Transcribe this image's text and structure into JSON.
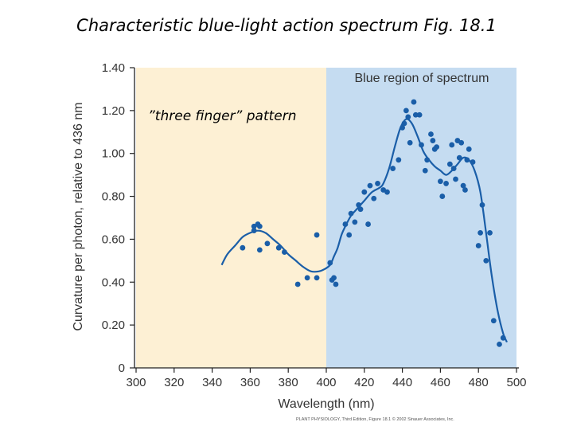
{
  "slide": {
    "title": "Characteristic blue-light action spectrum Fig. 18.1",
    "credit": "PLANT PHYSIOLOGY, Third Edition, Figure 18.1 © 2002 Sinauer Associates, Inc."
  },
  "chart_data": {
    "type": "scatter",
    "xlabel": "Wavelength (nm)",
    "ylabel": "Curvature per photon, relative to 436 nm",
    "xlim": [
      300,
      500
    ],
    "ylim": [
      0,
      1.4
    ],
    "xticks": [
      "300",
      "320",
      "340",
      "360",
      "380",
      "400",
      "420",
      "440",
      "460",
      "480",
      "500"
    ],
    "yticks": [
      "0",
      "0.20",
      "0.40",
      "0.60",
      "0.80",
      "1.00",
      "1.20",
      "1.40"
    ],
    "regions": [
      {
        "label": "",
        "x": [
          300,
          400
        ],
        "color": "#fdf0d4"
      },
      {
        "label": "Blue region of spectrum",
        "x": [
          400,
          500
        ],
        "color": "#c5dcf1"
      }
    ],
    "annotations": [
      "”three finger” pattern"
    ],
    "colors": {
      "points": "#1a5ea8",
      "curve": "#1a5ea8"
    },
    "series": [
      {
        "type": "scatter",
        "points": [
          [
            356,
            0.56
          ],
          [
            362,
            0.66
          ],
          [
            362,
            0.64
          ],
          [
            364,
            0.67
          ],
          [
            365,
            0.66
          ],
          [
            365,
            0.55
          ],
          [
            369,
            0.58
          ],
          [
            375,
            0.56
          ],
          [
            378,
            0.54
          ],
          [
            385,
            0.39
          ],
          [
            390,
            0.42
          ],
          [
            395,
            0.62
          ],
          [
            395,
            0.42
          ],
          [
            402,
            0.49
          ],
          [
            403,
            0.41
          ],
          [
            404,
            0.42
          ],
          [
            405,
            0.39
          ],
          [
            410,
            0.67
          ],
          [
            412,
            0.62
          ],
          [
            413,
            0.72
          ],
          [
            415,
            0.68
          ],
          [
            417,
            0.76
          ],
          [
            418,
            0.74
          ],
          [
            420,
            0.82
          ],
          [
            422,
            0.67
          ],
          [
            423,
            0.85
          ],
          [
            425,
            0.79
          ],
          [
            427,
            0.86
          ],
          [
            430,
            0.83
          ],
          [
            432,
            0.82
          ],
          [
            435,
            0.93
          ],
          [
            438,
            0.97
          ],
          [
            440,
            1.12
          ],
          [
            441,
            1.14
          ],
          [
            442,
            1.2
          ],
          [
            443,
            1.17
          ],
          [
            444,
            1.05
          ],
          [
            446,
            1.24
          ],
          [
            447,
            1.18
          ],
          [
            449,
            1.18
          ],
          [
            450,
            1.04
          ],
          [
            452,
            0.92
          ],
          [
            453,
            0.97
          ],
          [
            455,
            1.09
          ],
          [
            456,
            1.06
          ],
          [
            457,
            1.02
          ],
          [
            458,
            1.03
          ],
          [
            460,
            0.87
          ],
          [
            461,
            0.8
          ],
          [
            463,
            0.86
          ],
          [
            465,
            0.95
          ],
          [
            466,
            1.04
          ],
          [
            467,
            0.93
          ],
          [
            468,
            0.88
          ],
          [
            469,
            1.06
          ],
          [
            470,
            0.98
          ],
          [
            471,
            1.05
          ],
          [
            472,
            0.85
          ],
          [
            473,
            0.83
          ],
          [
            474,
            0.97
          ],
          [
            475,
            1.02
          ],
          [
            477,
            0.96
          ],
          [
            480,
            0.57
          ],
          [
            481,
            0.63
          ],
          [
            482,
            0.76
          ],
          [
            484,
            0.5
          ],
          [
            486,
            0.63
          ],
          [
            488,
            0.22
          ],
          [
            491,
            0.11
          ],
          [
            493,
            0.14
          ]
        ]
      },
      {
        "type": "line",
        "points": [
          [
            345,
            0.48
          ],
          [
            348,
            0.53
          ],
          [
            352,
            0.57
          ],
          [
            356,
            0.61
          ],
          [
            360,
            0.63
          ],
          [
            364,
            0.64
          ],
          [
            368,
            0.63
          ],
          [
            372,
            0.6
          ],
          [
            376,
            0.57
          ],
          [
            380,
            0.53
          ],
          [
            384,
            0.5
          ],
          [
            388,
            0.47
          ],
          [
            392,
            0.45
          ],
          [
            396,
            0.45
          ],
          [
            399,
            0.46
          ],
          [
            402,
            0.48
          ],
          [
            404,
            0.52
          ],
          [
            406,
            0.56
          ],
          [
            408,
            0.62
          ],
          [
            410,
            0.66
          ],
          [
            413,
            0.71
          ],
          [
            416,
            0.74
          ],
          [
            420,
            0.78
          ],
          [
            424,
            0.82
          ],
          [
            428,
            0.84
          ],
          [
            430,
            0.86
          ],
          [
            433,
            0.93
          ],
          [
            436,
            1.03
          ],
          [
            439,
            1.12
          ],
          [
            442,
            1.16
          ],
          [
            445,
            1.14
          ],
          [
            448,
            1.08
          ],
          [
            451,
            1.01
          ],
          [
            454,
            0.97
          ],
          [
            457,
            0.94
          ],
          [
            460,
            0.92
          ],
          [
            463,
            0.9
          ],
          [
            466,
            0.92
          ],
          [
            469,
            0.95
          ],
          [
            472,
            0.98
          ],
          [
            475,
            0.97
          ],
          [
            478,
            0.92
          ],
          [
            481,
            0.82
          ],
          [
            484,
            0.63
          ],
          [
            487,
            0.43
          ],
          [
            490,
            0.27
          ],
          [
            493,
            0.16
          ],
          [
            495,
            0.12
          ]
        ]
      }
    ]
  }
}
